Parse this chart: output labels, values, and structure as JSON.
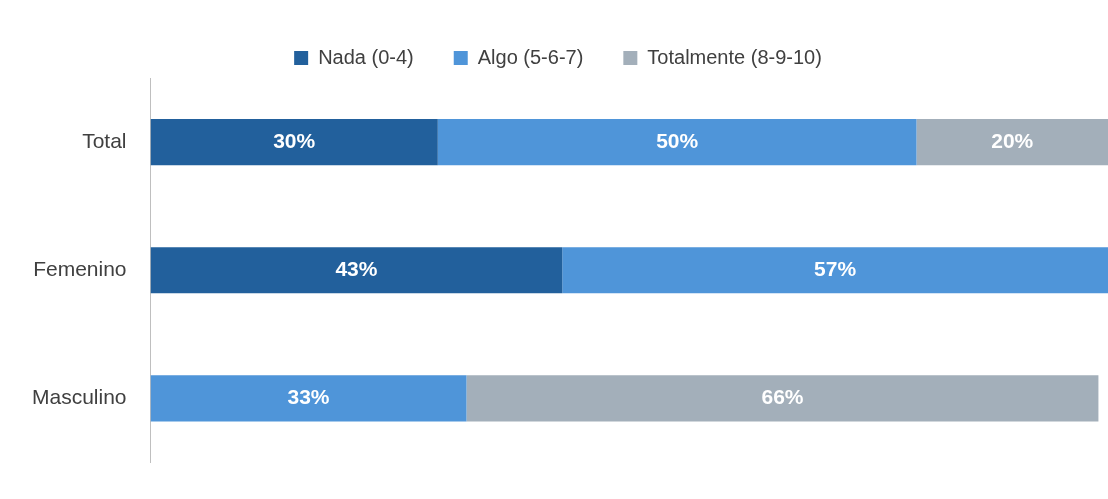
{
  "chart_data": {
    "type": "bar",
    "orientation": "horizontal",
    "stacked": true,
    "categories": [
      "Total",
      "Femenino",
      "Masculino"
    ],
    "series": [
      {
        "name": "Nada (0-4)",
        "color": "#22609c",
        "values": [
          30,
          43,
          null
        ],
        "value_labels": [
          "30%",
          "43%",
          null
        ]
      },
      {
        "name": "Algo (5-6-7)",
        "color": "#4f95d9",
        "values": [
          50,
          57,
          33
        ],
        "value_labels": [
          "50%",
          "57%",
          "33%"
        ]
      },
      {
        "name": "Totalmente (8-9-10)",
        "color": "#a3afba",
        "values": [
          20,
          null,
          66
        ],
        "value_labels": [
          "20%",
          null,
          "66%"
        ]
      }
    ],
    "legend": "top"
  }
}
